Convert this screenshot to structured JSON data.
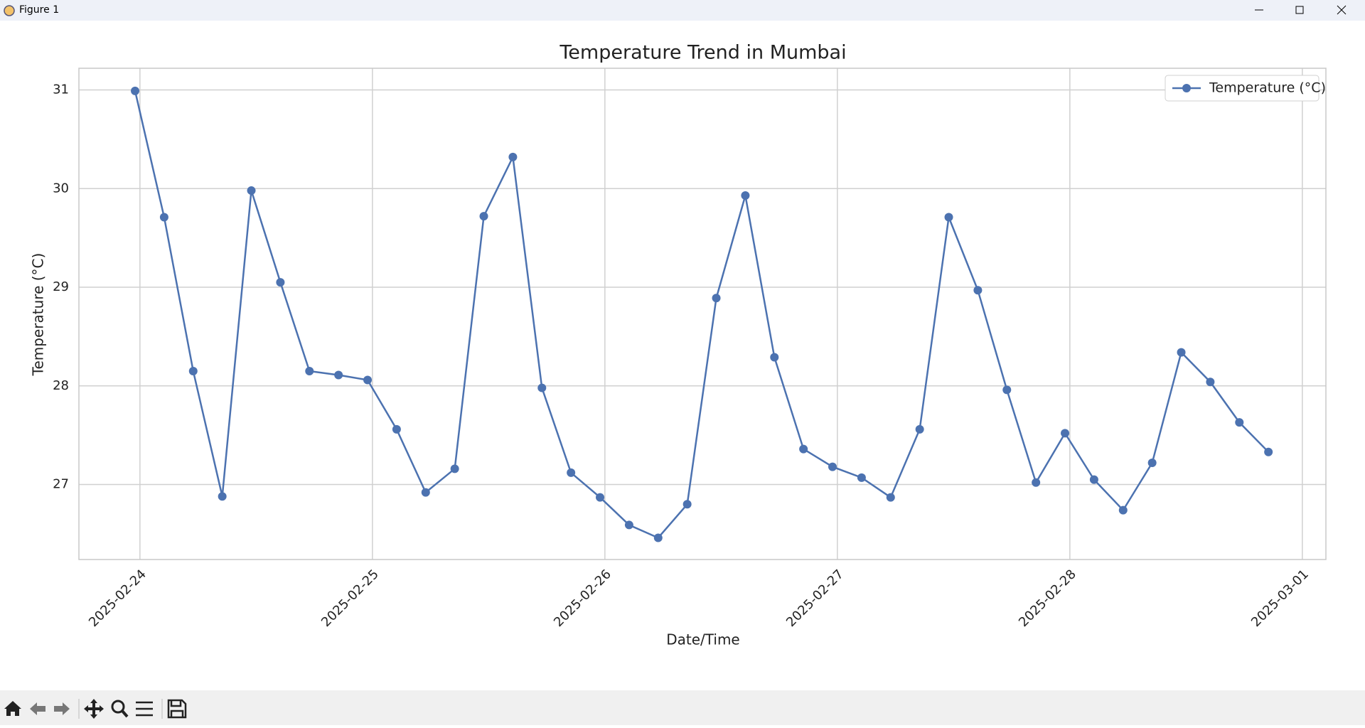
{
  "window": {
    "title": "Figure 1"
  },
  "chart_data": {
    "type": "line",
    "title": "Temperature Trend in Mumbai",
    "x_label": "Date/Time",
    "y_label": "Temperature (°C)",
    "x": [
      "2025-02-23T23:30",
      "2025-02-24T02:30",
      "2025-02-24T05:30",
      "2025-02-24T08:30",
      "2025-02-24T11:30",
      "2025-02-24T14:30",
      "2025-02-24T17:30",
      "2025-02-24T20:30",
      "2025-02-24T23:30",
      "2025-02-25T02:30",
      "2025-02-25T05:30",
      "2025-02-25T08:30",
      "2025-02-25T11:30",
      "2025-02-25T14:30",
      "2025-02-25T17:30",
      "2025-02-25T20:30",
      "2025-02-25T23:30",
      "2025-02-26T02:30",
      "2025-02-26T05:30",
      "2025-02-26T08:30",
      "2025-02-26T11:30",
      "2025-02-26T14:30",
      "2025-02-26T17:30",
      "2025-02-26T20:30",
      "2025-02-26T23:30",
      "2025-02-27T02:30",
      "2025-02-27T05:30",
      "2025-02-27T08:30",
      "2025-02-27T11:30",
      "2025-02-27T14:30",
      "2025-02-27T17:30",
      "2025-02-27T20:30",
      "2025-02-27T23:30",
      "2025-02-28T02:30",
      "2025-02-28T05:30",
      "2025-02-28T08:30",
      "2025-02-28T11:30",
      "2025-02-28T14:30",
      "2025-02-28T17:30",
      "2025-02-28T20:30"
    ],
    "series": [
      {
        "name": "Temperature (°C)",
        "color": "#4c72b0",
        "values": [
          30.99,
          29.71,
          28.15,
          26.88,
          29.98,
          29.05,
          28.15,
          28.11,
          28.06,
          27.56,
          26.92,
          27.16,
          29.72,
          30.32,
          27.98,
          27.12,
          26.87,
          26.59,
          26.46,
          26.8,
          28.89,
          29.93,
          28.29,
          27.36,
          27.18,
          27.07,
          26.87,
          27.56,
          29.71,
          28.97,
          27.96,
          27.02,
          27.52,
          27.05,
          26.74,
          27.22,
          28.34,
          28.04,
          27.63,
          27.33
        ]
      }
    ],
    "xlim": [
      "2025-02-23T17:42",
      "2025-03-01T02:26"
    ],
    "xticks": [
      "2025-02-24",
      "2025-02-25",
      "2025-02-26",
      "2025-02-27",
      "2025-02-28",
      "2025-03-01"
    ],
    "ylim": [
      26.24,
      31.22
    ],
    "yticks": [
      27,
      28,
      29,
      30,
      31
    ],
    "grid": true,
    "legend": "upper right",
    "marker": "circle"
  }
}
